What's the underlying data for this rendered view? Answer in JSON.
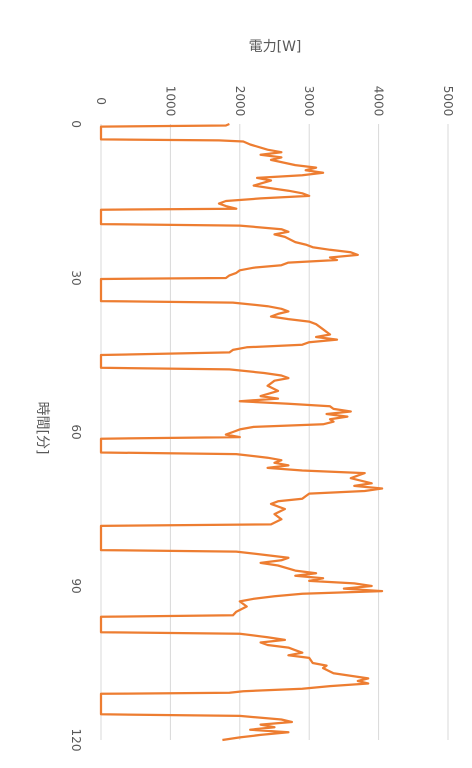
{
  "chart_data": {
    "type": "line",
    "title": "",
    "xlabel": "時間[分]",
    "ylabel": "電力[W]",
    "xlim": [
      0,
      120
    ],
    "ylim": [
      0,
      5000
    ],
    "x_ticks": [
      0,
      30,
      60,
      90,
      120
    ],
    "y_ticks": [
      0,
      1000,
      2000,
      3000,
      4000,
      5000
    ],
    "orientation": "rotated-90-clockwise",
    "grid": true,
    "legend": "none",
    "series": [
      {
        "color": "#ED7D31",
        "points": [
          [
            0,
            1850
          ],
          [
            0.3,
            1800
          ],
          [
            0.5,
            0
          ],
          [
            3,
            0
          ],
          [
            3.2,
            1700
          ],
          [
            3.4,
            2050
          ],
          [
            4,
            2150
          ],
          [
            5,
            2400
          ],
          [
            5.5,
            2600
          ],
          [
            6,
            2300
          ],
          [
            6.5,
            2600
          ],
          [
            7,
            2450
          ],
          [
            8,
            2800
          ],
          [
            8.5,
            3100
          ],
          [
            9,
            2950
          ],
          [
            9.5,
            3200
          ],
          [
            10,
            2900
          ],
          [
            10.5,
            2250
          ],
          [
            11,
            2450
          ],
          [
            12,
            2200
          ],
          [
            12.5,
            2450
          ],
          [
            13,
            2700
          ],
          [
            13.5,
            2900
          ],
          [
            14,
            3000
          ],
          [
            14.5,
            2300
          ],
          [
            15,
            1800
          ],
          [
            15.5,
            1700
          ],
          [
            16,
            1800
          ],
          [
            16.5,
            1950
          ],
          [
            16.7,
            0
          ],
          [
            19.5,
            0
          ],
          [
            19.8,
            2000
          ],
          [
            20.5,
            2600
          ],
          [
            21,
            2700
          ],
          [
            21.5,
            2500
          ],
          [
            22,
            2650
          ],
          [
            23,
            2800
          ],
          [
            23.5,
            2950
          ],
          [
            24,
            3050
          ],
          [
            24.5,
            3300
          ],
          [
            25,
            3600
          ],
          [
            25.5,
            3700
          ],
          [
            26,
            3300
          ],
          [
            26.5,
            3400
          ],
          [
            27,
            2700
          ],
          [
            27.5,
            2600
          ],
          [
            28,
            2200
          ],
          [
            28.5,
            2000
          ],
          [
            29,
            1950
          ],
          [
            29.5,
            1850
          ],
          [
            30,
            1800
          ],
          [
            30.2,
            0
          ],
          [
            34.5,
            0
          ],
          [
            34.8,
            1900
          ],
          [
            35.5,
            2400
          ],
          [
            36,
            2600
          ],
          [
            36.5,
            2700
          ],
          [
            37,
            2550
          ],
          [
            37.5,
            2450
          ],
          [
            38,
            2700
          ],
          [
            38.5,
            3000
          ],
          [
            39,
            3100
          ],
          [
            40,
            3200
          ],
          [
            41,
            3300
          ],
          [
            41.5,
            3100
          ],
          [
            42,
            3400
          ],
          [
            42.5,
            3000
          ],
          [
            43,
            2900
          ],
          [
            43.5,
            2100
          ],
          [
            44,
            1900
          ],
          [
            44.5,
            1850
          ],
          [
            45,
            0
          ],
          [
            47.5,
            0
          ],
          [
            47.8,
            1850
          ],
          [
            48.5,
            2350
          ],
          [
            49,
            2600
          ],
          [
            49.5,
            2700
          ],
          [
            50,
            2500
          ],
          [
            51,
            2400
          ],
          [
            52,
            2550
          ],
          [
            53,
            2300
          ],
          [
            53.5,
            2550
          ],
          [
            54,
            2000
          ],
          [
            54.5,
            2700
          ],
          [
            55,
            3300
          ],
          [
            55.5,
            3350
          ],
          [
            56,
            3600
          ],
          [
            56.5,
            3250
          ],
          [
            57,
            3550
          ],
          [
            57.5,
            3300
          ],
          [
            58,
            3350
          ],
          [
            58.5,
            3200
          ],
          [
            59,
            2200
          ],
          [
            59.5,
            2000
          ],
          [
            60,
            1900
          ],
          [
            60.5,
            1800
          ],
          [
            61,
            2000
          ],
          [
            61.3,
            0
          ],
          [
            64,
            0
          ],
          [
            64.3,
            1950
          ],
          [
            65,
            2400
          ],
          [
            65.5,
            2600
          ],
          [
            66,
            2500
          ],
          [
            66.5,
            2700
          ],
          [
            67,
            2400
          ],
          [
            67.5,
            2900
          ],
          [
            68,
            3800
          ],
          [
            68.5,
            3700
          ],
          [
            69,
            3600
          ],
          [
            70,
            3900
          ],
          [
            70.5,
            3650
          ],
          [
            71,
            4050
          ],
          [
            71.5,
            3800
          ],
          [
            72,
            3000
          ],
          [
            73,
            2900
          ],
          [
            73.5,
            2550
          ],
          [
            74,
            2450
          ],
          [
            75,
            2650
          ],
          [
            76,
            2500
          ],
          [
            77,
            2600
          ],
          [
            78,
            2450
          ],
          [
            78.3,
            0
          ],
          [
            83,
            0
          ],
          [
            83.3,
            1950
          ],
          [
            84,
            2400
          ],
          [
            84.5,
            2700
          ],
          [
            85,
            2600
          ],
          [
            85.5,
            2300
          ],
          [
            86,
            2550
          ],
          [
            87,
            2800
          ],
          [
            87.5,
            3100
          ],
          [
            88,
            2800
          ],
          [
            88.5,
            3200
          ],
          [
            89,
            3000
          ],
          [
            89.5,
            3650
          ],
          [
            90,
            3900
          ],
          [
            90.5,
            3500
          ],
          [
            91,
            4050
          ],
          [
            91.5,
            2900
          ],
          [
            92,
            2500
          ],
          [
            92.5,
            2200
          ],
          [
            93,
            2000
          ],
          [
            94,
            2100
          ],
          [
            95,
            1950
          ],
          [
            95.7,
            1900
          ],
          [
            96,
            0
          ],
          [
            99,
            0
          ],
          [
            99.3,
            2000
          ],
          [
            100,
            2400
          ],
          [
            100.5,
            2650
          ],
          [
            101,
            2300
          ],
          [
            101.5,
            2400
          ],
          [
            102,
            2700
          ],
          [
            102.5,
            2800
          ],
          [
            103,
            2900
          ],
          [
            103.5,
            2700
          ],
          [
            104,
            3000
          ],
          [
            105,
            3050
          ],
          [
            105.5,
            3250
          ],
          [
            106,
            3200
          ],
          [
            107,
            3350
          ],
          [
            108,
            3850
          ],
          [
            108.5,
            3700
          ],
          [
            109,
            3850
          ],
          [
            109.5,
            3300
          ],
          [
            110,
            2900
          ],
          [
            110.5,
            2050
          ],
          [
            110.8,
            1850
          ],
          [
            111,
            0
          ],
          [
            115,
            0
          ],
          [
            115.3,
            2000
          ],
          [
            116,
            2600
          ],
          [
            116.5,
            2750
          ],
          [
            117,
            2300
          ],
          [
            117.5,
            2500
          ],
          [
            118,
            2150
          ],
          [
            118.5,
            2700
          ],
          [
            119,
            2300
          ],
          [
            119.5,
            2000
          ],
          [
            120,
            1750
          ]
        ]
      }
    ]
  }
}
